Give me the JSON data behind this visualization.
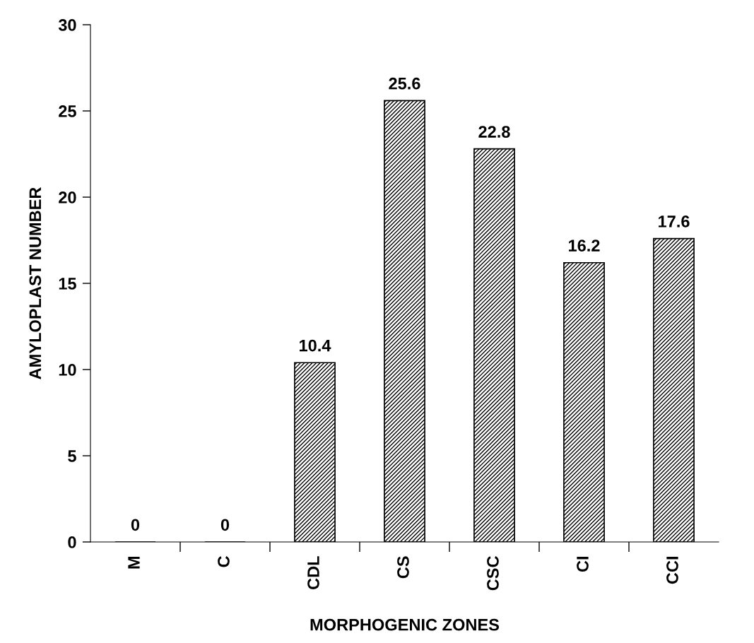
{
  "chart_data": {
    "type": "bar",
    "xlabel": "MORPHOGENIC ZONES",
    "ylabel": "AMYLOPLAST NUMBER",
    "categories": [
      "M",
      "C",
      "CDL",
      "CS",
      "CSC",
      "CI",
      "CCI"
    ],
    "values": [
      0,
      0,
      10.4,
      25.6,
      22.8,
      16.2,
      17.6
    ],
    "color": "#000000",
    "ylim": [
      0,
      30
    ],
    "yticks": [
      0,
      5,
      10,
      15,
      20,
      25,
      30
    ],
    "data_labels": true,
    "grid": false
  }
}
